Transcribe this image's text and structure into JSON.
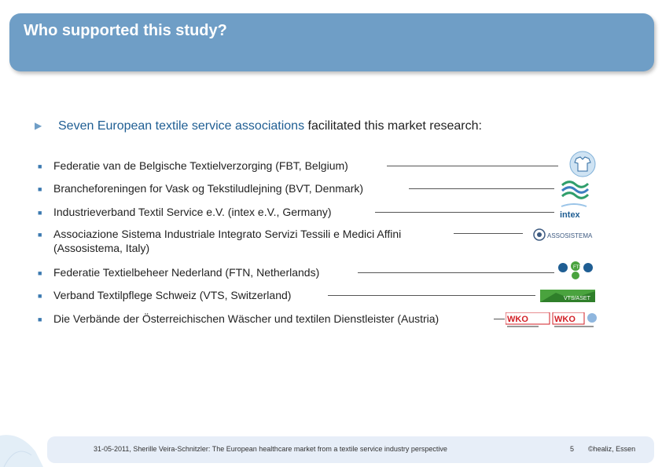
{
  "header": {
    "title": "Who supported this study?"
  },
  "intro": {
    "highlight": "Seven European textile service associations",
    "rest": " facilitated this market research:"
  },
  "items": [
    {
      "label": "Federatie van de Belgische Textielverzorging (FBT, Belgium)",
      "logo": "fbt-logo"
    },
    {
      "label": "Brancheforeningen for Vask og Tekstiludlejning (BVT, Denmark)",
      "logo": "bvt-logo"
    },
    {
      "label": "Industrieverband Textil Service e.V. (intex e.V., Germany)",
      "logo": "intex-logo",
      "logo_text": "intex"
    },
    {
      "label": "Associazione Sistema Industriale Integrato Servizi Tessili e Medici Affini",
      "label2": "(Assosistema, Italy)",
      "logo": "assosistema-logo",
      "logo_text": "ASSOSISTEMA"
    },
    {
      "label": "Federatie Textielbeheer Nederland (FTN, Netherlands)",
      "logo": "ftn-logo",
      "logo_text": "FTN"
    },
    {
      "label": "Verband Textilpflege Schweiz (VTS, Switzerland)",
      "logo": "vts-logo",
      "logo_text": "VTS/ASET"
    },
    {
      "label": "Die Verbände der Österreichischen Wäscher und textilen Dienstleister (Austria)",
      "logo": "wko-logo",
      "logo_text": "WKO"
    }
  ],
  "footer": {
    "text": "31-05-2011, Sherille Veira-Schnitzler: The European healthcare market from a textile service industry perspective",
    "page": "5",
    "copyright": "©healiz, Essen"
  },
  "colors": {
    "header": "#6f9ec6",
    "accent": "#1f5e93",
    "footer": "#e7eef8"
  }
}
